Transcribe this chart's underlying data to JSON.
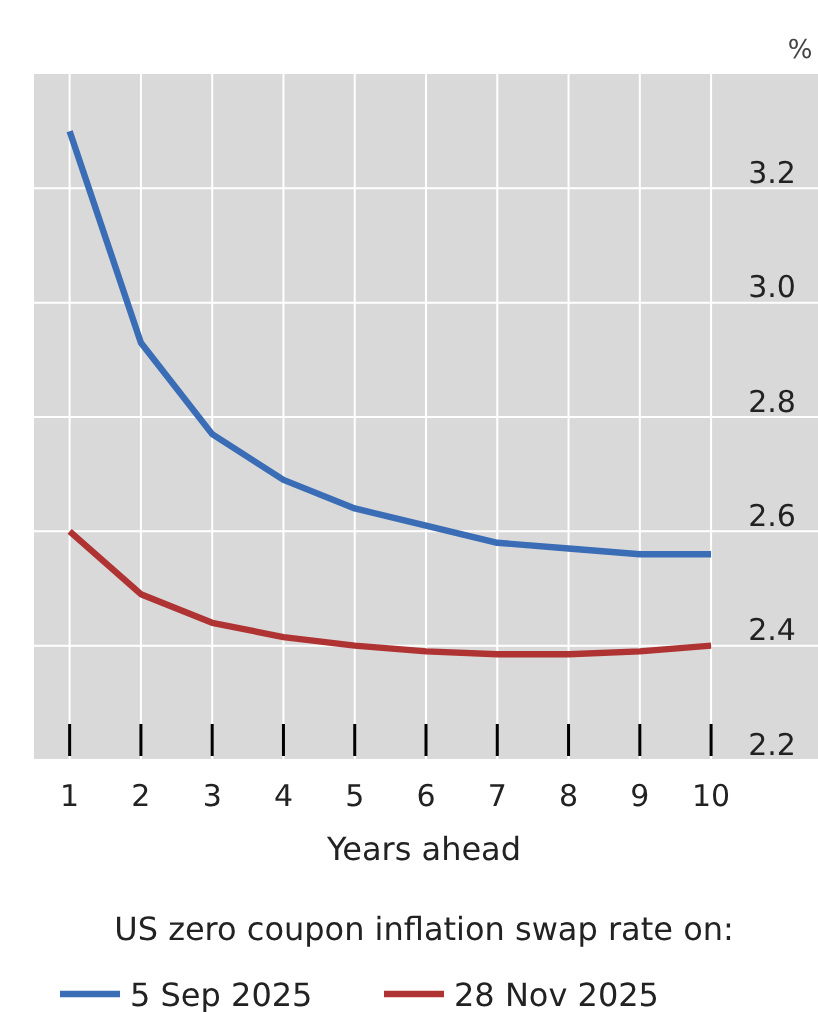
{
  "chart_data": {
    "type": "line",
    "xlabel": "Years ahead",
    "ylabel": "%",
    "legend_title": "US zero coupon inflation swap rate on:",
    "legend": "bottom",
    "grid": true,
    "marker": "none",
    "line_style": "solid",
    "x": [
      1,
      2,
      3,
      4,
      5,
      6,
      7,
      8,
      9,
      10
    ],
    "xlim": [
      0.5,
      11.5
    ],
    "xticks": [
      1,
      2,
      3,
      4,
      5,
      6,
      7,
      8,
      9,
      10
    ],
    "ylim": [
      2.2,
      3.4
    ],
    "yticks": [
      {
        "value": 2.2,
        "label": "2.2"
      },
      {
        "value": 2.4,
        "label": "2.4"
      },
      {
        "value": 2.6,
        "label": "2.6"
      },
      {
        "value": 2.8,
        "label": "2.8"
      },
      {
        "value": 3.0,
        "label": "3.0"
      },
      {
        "value": 3.2,
        "label": "3.2"
      }
    ],
    "series": [
      {
        "name": "5 Sep 2025",
        "color": "#3a6db5",
        "values": [
          3.3,
          2.93,
          2.77,
          2.69,
          2.64,
          2.61,
          2.58,
          2.57,
          2.56,
          2.56
        ]
      },
      {
        "name": "28 Nov 2025",
        "color": "#b03333",
        "values": [
          2.6,
          2.49,
          2.44,
          2.415,
          2.4,
          2.39,
          2.385,
          2.385,
          2.39,
          2.4
        ]
      }
    ]
  }
}
